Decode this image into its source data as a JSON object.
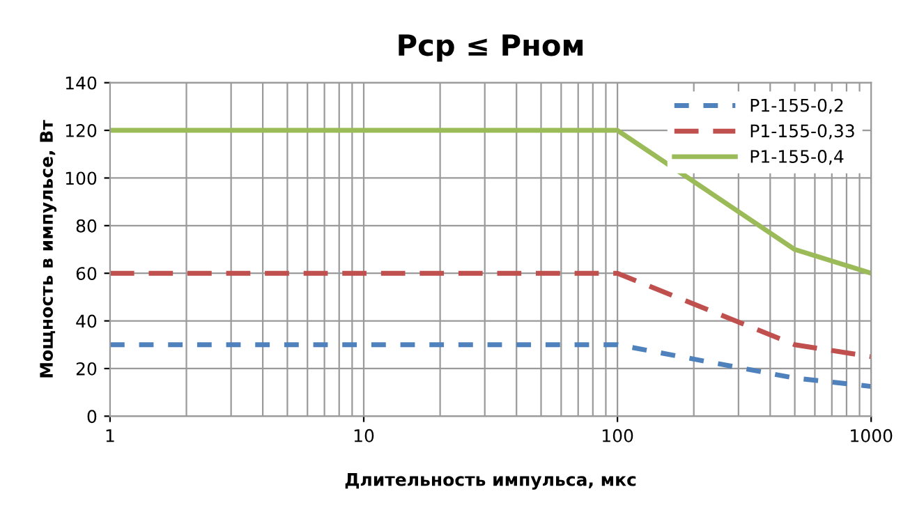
{
  "chart_data": {
    "type": "line",
    "title": "Рср ≤ Рном",
    "xlabel": "Длительность импульса, мкс",
    "ylabel": "Мощность в импульсе, Вт",
    "x": [
      1,
      100,
      500,
      1000
    ],
    "log": "x",
    "xlim": [
      1,
      1000
    ],
    "xticks": [
      1,
      10,
      100,
      1000
    ],
    "ylim": [
      0,
      140
    ],
    "yticks": [
      0,
      20,
      40,
      60,
      80,
      100,
      120,
      140
    ],
    "grid": true,
    "legend": "top right",
    "marker": "none",
    "series": [
      {
        "name": "Р1-155-0,2",
        "color": "#4f81bd",
        "line_style": "dashed",
        "values": [
          30,
          30,
          16,
          12.5
        ]
      },
      {
        "name": "Р1-155-0,33",
        "color": "#c0504d",
        "line_style": "longdash",
        "values": [
          60,
          60,
          30,
          25
        ]
      },
      {
        "name": "Р1-155-0,4",
        "color": "#9bbb59",
        "line_style": "solid",
        "values": [
          120,
          120,
          70,
          60
        ]
      }
    ]
  }
}
